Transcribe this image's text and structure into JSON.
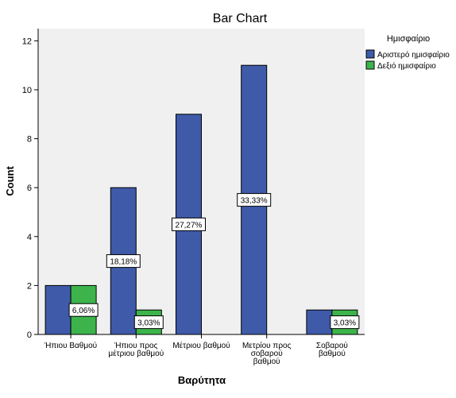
{
  "chart_data": {
    "type": "bar",
    "title": "Bar Chart",
    "xlabel": "Βαρύτητα",
    "ylabel": "Count",
    "ylim": [
      0,
      12.5
    ],
    "yticks": [
      0,
      2,
      4,
      6,
      8,
      10,
      12
    ],
    "grid": false,
    "legend_position": "right",
    "legend_title": "Ημισφαίριο",
    "categories": [
      [
        "Ήπιου Βαθμού"
      ],
      [
        "Ήπιου προς",
        "μέτριου βαθμού"
      ],
      [
        "Μέτριου βαθμού"
      ],
      [
        "Μετρίου προς",
        "σοβαρού",
        "βαθμού"
      ],
      [
        "Σοβαρού",
        "βαθμού"
      ]
    ],
    "series": [
      {
        "name": "Αριστερό ημισφαίριο",
        "color": "#3f5aa8",
        "values": [
          2,
          6,
          9,
          11,
          1
        ],
        "labels": [
          "",
          "18,18%",
          "27,27%",
          "33,33%",
          ""
        ],
        "label_values": [
          null,
          3,
          4.5,
          5.5,
          null
        ]
      },
      {
        "name": "Δεξιό ημισφαίριο",
        "color": "#3cb44b",
        "values": [
          2,
          1,
          0,
          0,
          1
        ],
        "labels": [
          "6,06%",
          "3,03%",
          "",
          "",
          "3,03%"
        ],
        "label_values": [
          1,
          0.5,
          null,
          null,
          0.5
        ]
      }
    ]
  },
  "colors": {
    "plot_background": "#f0f0f0",
    "axis": "#000000",
    "bar_border": "#000000"
  }
}
